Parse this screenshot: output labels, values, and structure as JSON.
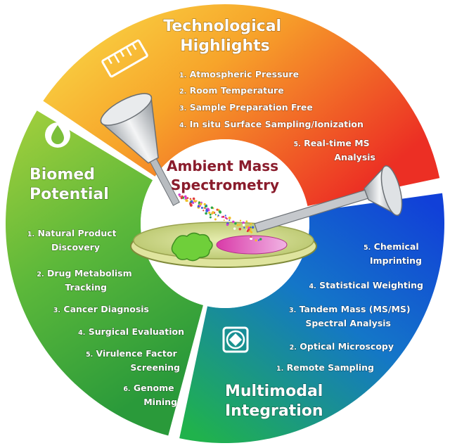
{
  "center_title": [
    "Ambient Mass",
    "Spectrometry"
  ],
  "technological": {
    "title": [
      "Technological",
      "Highlights"
    ],
    "icon": "ruler-icon",
    "items": [
      {
        "num": "1.",
        "text": [
          "Atmospheric Pressure"
        ]
      },
      {
        "num": "2.",
        "text": [
          "Room Temperature"
        ]
      },
      {
        "num": "3.",
        "text": [
          "Sample Preparation Free"
        ]
      },
      {
        "num": "4.",
        "text": [
          "In situ Surface Sampling/Ionization"
        ]
      },
      {
        "num": "5.",
        "text": [
          "Real-time MS",
          "Analysis"
        ]
      }
    ]
  },
  "biomed": {
    "title": [
      "Biomed",
      "Potential"
    ],
    "icon": "droplet-icon",
    "items": [
      {
        "num": "1.",
        "text": [
          "Natural Product",
          "Discovery"
        ]
      },
      {
        "num": "2.",
        "text": [
          "Drug Metabolism",
          "Tracking"
        ]
      },
      {
        "num": "3.",
        "text": [
          "Cancer Diagnosis"
        ]
      },
      {
        "num": "4.",
        "text": [
          "Surgical Evaluation"
        ]
      },
      {
        "num": "5.",
        "text": [
          "Virulence Factor",
          "Screening"
        ]
      },
      {
        "num": "6.",
        "text": [
          "Genome",
          "Mining"
        ]
      }
    ]
  },
  "multimodal": {
    "title": [
      "Multimodal",
      "Integration"
    ],
    "icon": "microscopy-frame-icon",
    "items": [
      {
        "num": "5.",
        "text": [
          "Chemical",
          "Imprinting"
        ]
      },
      {
        "num": "4.",
        "text": [
          "Statistical Weighting"
        ]
      },
      {
        "num": "3.",
        "text": [
          "Tandem Mass (MS/MS)",
          "Spectral Analysis"
        ]
      },
      {
        "num": "2.",
        "text": [
          "Optical Microscopy"
        ]
      },
      {
        "num": "1.",
        "text": [
          "Remote Sampling"
        ]
      }
    ]
  },
  "colors": {
    "tech_start": "#f7d23a",
    "tech_end": "#ef3a2a",
    "bio_start": "#8cc63f",
    "bio_end": "#2f9e38",
    "multi_start": "#1b5fe0",
    "multi_end": "#1fb05a",
    "center_text": "#8a1c2c"
  }
}
